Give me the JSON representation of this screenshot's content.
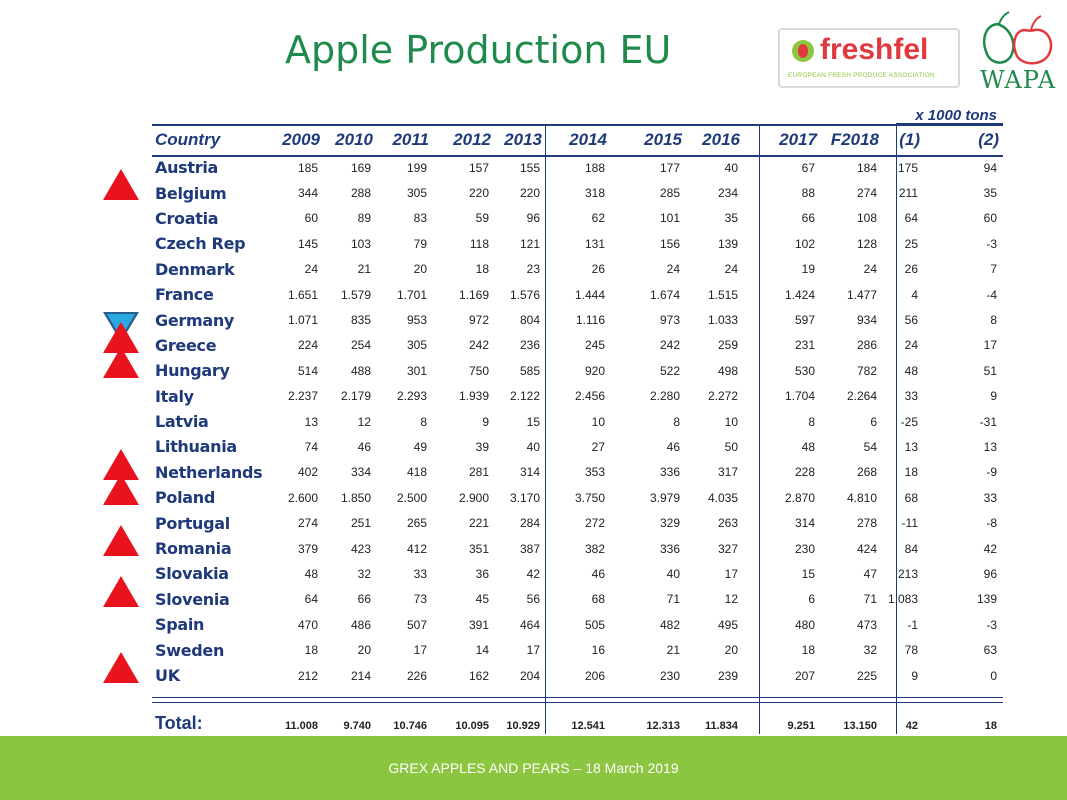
{
  "title": "Apple Production EU",
  "logos": {
    "freshfel_word": "freshfel",
    "freshfel_sub": "EUROPEAN FRESH PRODUCE ASSOCIATION",
    "wapa_word": "WAPA"
  },
  "units": "x 1000 tons",
  "footer_text": "GREX APPLES AND PEARS –  18 March  2019",
  "colors": {
    "title": "#1f8a4c",
    "header": "#1f3a7a",
    "triangle_up": "#e8131d",
    "triangle_down": "#29a9e0",
    "footer_band": "#8cc540"
  },
  "chart_data": {
    "type": "table",
    "title": "Apple Production EU",
    "units": "x 1000 tons",
    "columns": [
      "Country",
      "2009",
      "2010",
      "2011",
      "2012",
      "2013",
      "2014",
      "2015",
      "2016",
      "2017",
      "F2018",
      "(1)",
      "(2)"
    ],
    "rows": [
      {
        "country": "Austria",
        "values": [
          "185",
          "169",
          "199",
          "157",
          "155",
          "188",
          "177",
          "40",
          "67",
          "184",
          "175",
          "94"
        ],
        "trend": ""
      },
      {
        "country": "Belgium",
        "values": [
          "344",
          "288",
          "305",
          "220",
          "220",
          "318",
          "285",
          "234",
          "88",
          "274",
          "211",
          "35"
        ],
        "trend": "up"
      },
      {
        "country": "Croatia",
        "values": [
          "60",
          "89",
          "83",
          "59",
          "96",
          "62",
          "101",
          "35",
          "66",
          "108",
          "64",
          "60"
        ],
        "trend": ""
      },
      {
        "country": "Czech Rep",
        "values": [
          "145",
          "103",
          "79",
          "118",
          "121",
          "131",
          "156",
          "139",
          "102",
          "128",
          "25",
          "-3"
        ],
        "trend": ""
      },
      {
        "country": "Denmark",
        "values": [
          "24",
          "21",
          "20",
          "18",
          "23",
          "26",
          "24",
          "24",
          "19",
          "24",
          "26",
          "7"
        ],
        "trend": ""
      },
      {
        "country": "France",
        "values": [
          "1.651",
          "1.579",
          "1.701",
          "1.169",
          "1.576",
          "1.444",
          "1.674",
          "1.515",
          "1.424",
          "1.477",
          "4",
          "-4"
        ],
        "trend": ""
      },
      {
        "country": "Germany",
        "values": [
          "1.071",
          "835",
          "953",
          "972",
          "804",
          "1.116",
          "973",
          "1.033",
          "597",
          "934",
          "56",
          "8"
        ],
        "trend": "down"
      },
      {
        "country": "Greece",
        "values": [
          "224",
          "254",
          "305",
          "242",
          "236",
          "245",
          "242",
          "259",
          "231",
          "286",
          "24",
          "17"
        ],
        "trend": "up"
      },
      {
        "country": "Hungary",
        "values": [
          "514",
          "488",
          "301",
          "750",
          "585",
          "920",
          "522",
          "498",
          "530",
          "782",
          "48",
          "51"
        ],
        "trend": "up"
      },
      {
        "country": "Italy",
        "values": [
          "2.237",
          "2.179",
          "2.293",
          "1.939",
          "2.122",
          "2.456",
          "2.280",
          "2.272",
          "1.704",
          "2.264",
          "33",
          "9"
        ],
        "trend": ""
      },
      {
        "country": "Latvia",
        "values": [
          "13",
          "12",
          "8",
          "9",
          "15",
          "10",
          "8",
          "10",
          "8",
          "6",
          "-25",
          "-31"
        ],
        "trend": ""
      },
      {
        "country": "Lithuania",
        "values": [
          "74",
          "46",
          "49",
          "39",
          "40",
          "27",
          "46",
          "50",
          "48",
          "54",
          "13",
          "13"
        ],
        "trend": ""
      },
      {
        "country": "Netherlands",
        "values": [
          "402",
          "334",
          "418",
          "281",
          "314",
          "353",
          "336",
          "317",
          "228",
          "268",
          "18",
          "-9"
        ],
        "trend": "up"
      },
      {
        "country": "Poland",
        "values": [
          "2.600",
          "1.850",
          "2.500",
          "2.900",
          "3.170",
          "3.750",
          "3.979",
          "4.035",
          "2.870",
          "4.810",
          "68",
          "33"
        ],
        "trend": "up"
      },
      {
        "country": "Portugal",
        "values": [
          "274",
          "251",
          "265",
          "221",
          "284",
          "272",
          "329",
          "263",
          "314",
          "278",
          "-11",
          "-8"
        ],
        "trend": ""
      },
      {
        "country": "Romania",
        "values": [
          "379",
          "423",
          "412",
          "351",
          "387",
          "382",
          "336",
          "327",
          "230",
          "424",
          "84",
          "42"
        ],
        "trend": "up"
      },
      {
        "country": "Slovakia",
        "values": [
          "48",
          "32",
          "33",
          "36",
          "42",
          "46",
          "40",
          "17",
          "15",
          "47",
          "213",
          "96"
        ],
        "trend": ""
      },
      {
        "country": "Slovenia",
        "values": [
          "64",
          "66",
          "73",
          "45",
          "56",
          "68",
          "71",
          "12",
          "6",
          "71",
          "1.083",
          "139"
        ],
        "trend": "up"
      },
      {
        "country": "Spain",
        "values": [
          "470",
          "486",
          "507",
          "391",
          "464",
          "505",
          "482",
          "495",
          "480",
          "473",
          "-1",
          "-3"
        ],
        "trend": ""
      },
      {
        "country": "Sweden",
        "values": [
          "18",
          "20",
          "17",
          "14",
          "17",
          "16",
          "21",
          "20",
          "18",
          "32",
          "78",
          "63"
        ],
        "trend": ""
      },
      {
        "country": "UK",
        "values": [
          "212",
          "214",
          "226",
          "162",
          "204",
          "206",
          "230",
          "239",
          "207",
          "225",
          "9",
          "0"
        ],
        "trend": "up"
      }
    ],
    "total": {
      "label": "Total:",
      "values": [
        "11.008",
        "9.740",
        "10.746",
        "10.095",
        "10.929",
        "12.541",
        "12.313",
        "11.834",
        "9.251",
        "13.150",
        "42",
        "18"
      ]
    }
  }
}
